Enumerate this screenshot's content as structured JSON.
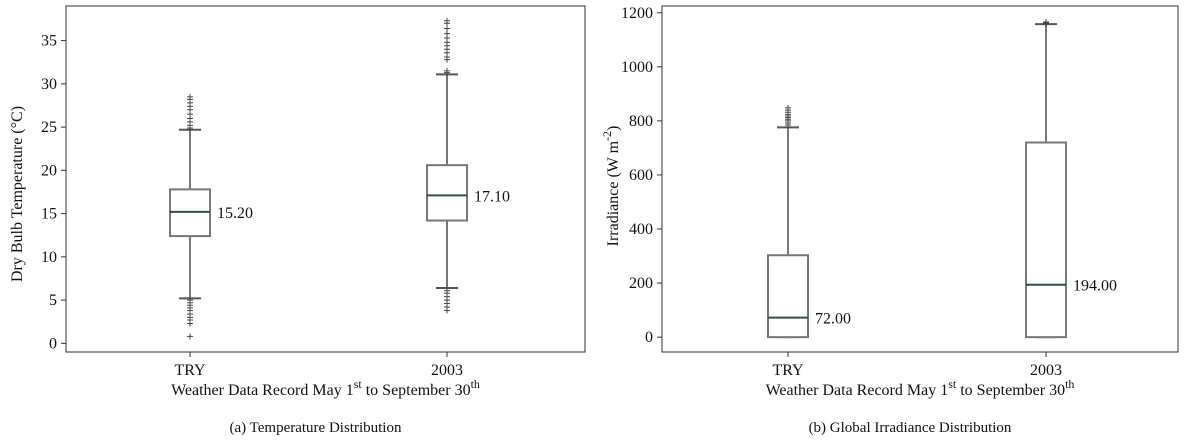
{
  "chart_data": [
    {
      "type": "box",
      "title": "",
      "caption": "(a) Temperature Distribution",
      "xlabel": {
        "pre": "Weather Data Record May 1",
        "sup1": "st",
        "mid": " to September 30",
        "sup2": "th"
      },
      "ylabel": "Dry Bulb Temperature (°C)",
      "ylim": [
        -1,
        39
      ],
      "yticks": [
        0,
        5,
        10,
        15,
        20,
        25,
        30,
        35
      ],
      "grid": false,
      "categories": [
        "TRY",
        "2003"
      ],
      "boxes": [
        {
          "category": "TRY",
          "whislo": 5.2,
          "q1": 12.4,
          "median": 15.2,
          "q3": 17.8,
          "whishi": 24.7,
          "median_label": "15.20",
          "fliers": [
            0.8,
            2.3,
            2.7,
            3.0,
            3.4,
            3.8,
            4.1,
            4.4,
            4.7,
            5.0,
            24.9,
            25.2,
            25.6,
            26.0,
            26.5,
            27.0,
            27.4,
            27.8,
            28.2,
            28.5
          ]
        },
        {
          "category": "2003",
          "whislo": 6.4,
          "q1": 14.2,
          "median": 17.1,
          "q3": 20.6,
          "whishi": 31.1,
          "median_label": "17.10",
          "fliers": [
            3.8,
            4.2,
            4.6,
            5.0,
            5.4,
            5.8,
            6.1,
            31.3,
            31.5,
            32.8,
            33.1,
            33.6,
            34.0,
            34.4,
            34.8,
            35.3,
            35.8,
            36.4,
            37.0,
            37.3
          ]
        }
      ]
    },
    {
      "type": "box",
      "title": "",
      "caption": "(b) Global Irradiance Distribution",
      "xlabel": {
        "pre": "Weather Data Record May 1",
        "sup1": "st",
        "mid": " to September 30",
        "sup2": "th"
      },
      "ylabel": {
        "pre": "Irradiance (W m",
        "sup": "-2",
        "post": ")"
      },
      "ylim": [
        -55,
        1225
      ],
      "yticks": [
        0,
        200,
        400,
        600,
        800,
        1000,
        1200
      ],
      "grid": false,
      "categories": [
        "TRY",
        "2003"
      ],
      "boxes": [
        {
          "category": "TRY",
          "whislo": 0,
          "q1": 0,
          "median": 72,
          "q3": 303,
          "whishi": 776,
          "median_label": "72.00",
          "fliers": [
            785,
            792,
            800,
            806,
            812,
            818,
            824,
            832,
            840,
            848
          ]
        },
        {
          "category": "2003",
          "whislo": 0,
          "q1": 0,
          "median": 194,
          "q3": 720,
          "whishi": 1158,
          "median_label": "194.00",
          "fliers": [
            1160,
            1162,
            1164,
            1166
          ]
        }
      ]
    }
  ]
}
